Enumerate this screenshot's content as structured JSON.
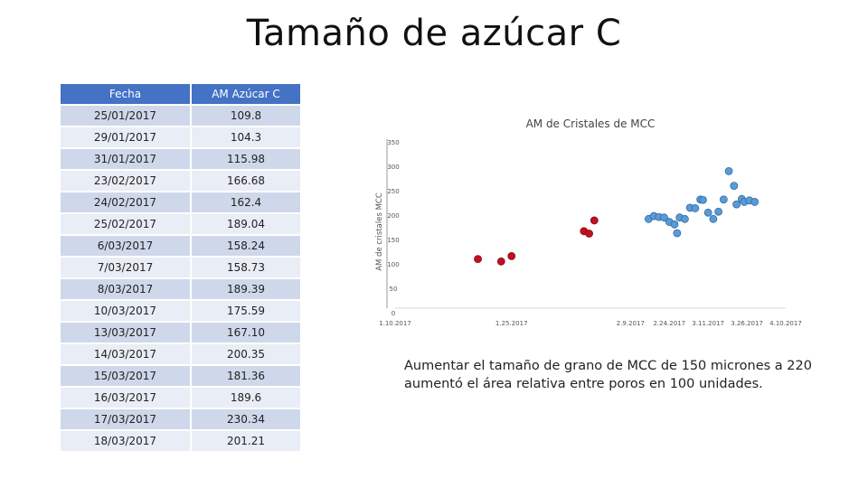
{
  "title": "Tamaño de azúcar C",
  "table": {
    "headers": [
      "Fecha",
      "AM Azúcar C"
    ],
    "rows": [
      [
        "25/01/2017",
        "109.8"
      ],
      [
        "29/01/2017",
        "104.3"
      ],
      [
        "31/01/2017",
        "115.98"
      ],
      [
        "23/02/2017",
        "166.68"
      ],
      [
        "24/02/2017",
        "162.4"
      ],
      [
        "25/02/2017",
        "189.04"
      ],
      [
        "6/03/2017",
        "158.24"
      ],
      [
        "7/03/2017",
        "158.73"
      ],
      [
        "8/03/2017",
        "189.39"
      ],
      [
        "10/03/2017",
        "175.59"
      ],
      [
        "13/03/2017",
        "167.10"
      ],
      [
        "14/03/2017",
        "200.35"
      ],
      [
        "15/03/2017",
        "181.36"
      ],
      [
        "16/03/2017",
        "189.6"
      ],
      [
        "17/03/2017",
        "230.34"
      ],
      [
        "18/03/2017",
        "201.21"
      ]
    ]
  },
  "chart_data": {
    "type": "scatter",
    "title": "AM de Cristales de MCC",
    "ylabel": "AM de cristales MCC",
    "xlabel": "",
    "ylim": [
      0,
      350
    ],
    "yticks": [
      0,
      50,
      100,
      150,
      200,
      250,
      300,
      350
    ],
    "xlim": [
      "2016-11-10",
      "2017-04-10"
    ],
    "xticks": [
      "2016-11-10",
      "2016-12-25",
      "2017-02-09",
      "2017-02-24",
      "2017-03-11",
      "2017-03-26",
      "2017-04-10"
    ],
    "xticklabels": [
      "1.10.2017",
      "1.25.2017",
      "2.9.2017",
      "2.24.2017",
      "3.11.2017",
      "3.26.2017",
      "4.10.2017"
    ],
    "grid": false,
    "legend": "none",
    "series": [
      {
        "color": "#c0111f",
        "points": [
          [
            "2016-12-12",
            110
          ],
          [
            "2016-12-21",
            105
          ],
          [
            "2016-12-25",
            116
          ],
          [
            "2017-01-22",
            167
          ],
          [
            "2017-01-24",
            162
          ],
          [
            "2017-01-26",
            189
          ]
        ]
      },
      {
        "color": "#5b9bd5",
        "points": [
          [
            "2017-02-16",
            192
          ],
          [
            "2017-02-18",
            198
          ],
          [
            "2017-02-20",
            196
          ],
          [
            "2017-02-22",
            195
          ],
          [
            "2017-02-24",
            186
          ],
          [
            "2017-02-26",
            181
          ],
          [
            "2017-02-27",
            163
          ],
          [
            "2017-02-28",
            195
          ],
          [
            "2017-03-02",
            192
          ],
          [
            "2017-03-04",
            215
          ],
          [
            "2017-03-06",
            214
          ],
          [
            "2017-03-08",
            232
          ],
          [
            "2017-03-09",
            231
          ],
          [
            "2017-03-11",
            205
          ],
          [
            "2017-03-13",
            192
          ],
          [
            "2017-03-15",
            207
          ],
          [
            "2017-03-17",
            232
          ],
          [
            "2017-03-19",
            290
          ],
          [
            "2017-03-21",
            260
          ],
          [
            "2017-03-22",
            222
          ],
          [
            "2017-03-24",
            233
          ],
          [
            "2017-03-25",
            227
          ],
          [
            "2017-03-27",
            230
          ],
          [
            "2017-03-29",
            227
          ]
        ]
      }
    ]
  },
  "note": "Aumentar el tamaño de grano de MCC de 150 micrones a 220 aumentó el área relativa entre poros en 100 unidades."
}
